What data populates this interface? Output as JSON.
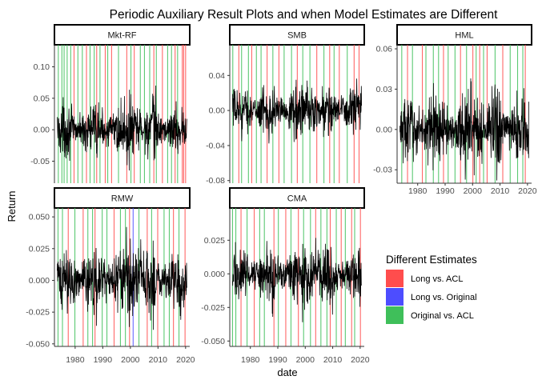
{
  "colors": {
    "long_vs_acl": "#ff4d4d",
    "long_vs_original": "#4d4dff",
    "original_vs_acl": "#3fbf5a",
    "series_line": "#000000",
    "background": "#ffffff"
  },
  "chart_data": {
    "type": "line",
    "title": "Periodic Auxiliary Result Plots and when Model Estimates are Different",
    "xlabel": "date",
    "ylabel": "Return",
    "grid": false,
    "legend_position": "bottom-right",
    "x_ticks": [
      "1980",
      "1990",
      "2000",
      "2010",
      "2020"
    ],
    "x_range": [
      1972.5,
      2021.5
    ],
    "legend": {
      "title": "Different Estimates",
      "items": [
        {
          "label": "Long vs. ACL",
          "color_key": "long_vs_acl"
        },
        {
          "label": "Long vs. Original",
          "color_key": "long_vs_original"
        },
        {
          "label": "Original vs. ACL",
          "color_key": "original_vs_acl"
        }
      ]
    },
    "panels": [
      {
        "name": "Mkt-RF",
        "ylim": [
          -0.085,
          0.135
        ],
        "y_ticks": [
          {
            "value": 0.1,
            "label": "0.10"
          },
          {
            "value": 0.05,
            "label": "0.05"
          },
          {
            "value": 0.0,
            "label": "0.00"
          },
          {
            "value": -0.05,
            "label": "-0.05"
          }
        ],
        "series_summary": {
          "min": -0.07,
          "max": 0.075,
          "start": 1973.5,
          "end": 2020.5,
          "frequency": "monthly"
        },
        "periods_long_vs_acl": [
          1979.6,
          1984.1,
          1987.8,
          1990.9,
          1993.2,
          1998.7,
          2001.4,
          2008.5,
          2011.6,
          2016.2,
          2018.8,
          2019.3,
          2020.0
        ],
        "periods_original_vs_acl": [
          1973.9,
          1975.2,
          1976.0,
          1977.1,
          1978.4,
          1981.0,
          1982.6,
          1985.4,
          1986.9,
          1989.0,
          1991.8,
          1995.7,
          2000.2,
          2003.6,
          2005.1,
          2007.0,
          2009.4,
          2013.5,
          2014.9,
          2017.1
        ]
      },
      {
        "name": "SMB",
        "ylim": [
          -0.083,
          0.075
        ],
        "y_ticks": [
          {
            "value": 0.04,
            "label": "0.04"
          },
          {
            "value": 0.0,
            "label": "0.00"
          },
          {
            "value": -0.04,
            "label": "-0.04"
          },
          {
            "value": -0.08,
            "label": "-0.08"
          }
        ],
        "series_summary": {
          "min": -0.05,
          "max": 0.04,
          "start": 1973.5,
          "end": 2020.5,
          "frequency": "monthly"
        },
        "periods_long_vs_acl": [
          1975.8,
          1980.5,
          1986.1,
          1990.4,
          1997.1,
          2004.2,
          2008.9,
          2012.4,
          2017.8,
          2019.6
        ],
        "periods_original_vs_acl": [
          1973.6,
          1976.8,
          1979.3,
          1982.2,
          1983.9,
          1988.2,
          1992.3,
          1995.0,
          1999.1,
          2001.7,
          2006.8,
          2010.5,
          2015.3
        ]
      },
      {
        "name": "HML",
        "ylim": [
          -0.04,
          0.063
        ],
        "y_ticks": [
          {
            "value": 0.06,
            "label": "0.06"
          },
          {
            "value": 0.03,
            "label": "0.03"
          },
          {
            "value": 0.0,
            "label": "0.00"
          },
          {
            "value": -0.03,
            "label": "-0.03"
          }
        ],
        "series_summary": {
          "min": -0.038,
          "max": 0.048,
          "start": 1973.5,
          "end": 2020.5,
          "frequency": "monthly"
        },
        "periods_long_vs_acl": [
          1976.3,
          1981.7,
          1989.4,
          1995.6,
          2000.1,
          2002.6,
          2005.3,
          2011.0,
          2019.2
        ],
        "periods_original_vs_acl": [
          1974.2,
          1978.1,
          1983.0,
          1985.7,
          1987.6,
          1991.1,
          1993.6,
          1997.8,
          2001.3,
          2004.0,
          2008.2,
          2013.7,
          2016.4,
          2018.3
        ]
      },
      {
        "name": "RMW",
        "ylim": [
          -0.052,
          0.057
        ],
        "y_ticks": [
          {
            "value": 0.05,
            "label": "0.050"
          },
          {
            "value": 0.025,
            "label": "0.025"
          },
          {
            "value": 0.0,
            "label": "0.000"
          },
          {
            "value": -0.025,
            "label": "-0.025"
          },
          {
            "value": -0.05,
            "label": "-0.050"
          }
        ],
        "series_summary": {
          "min": -0.042,
          "max": 0.046,
          "start": 1973.5,
          "end": 2020.5,
          "frequency": "monthly"
        },
        "periods_long_vs_acl": [
          1977.5,
          1982.9,
          1987.2,
          1994.1,
          1999.7,
          2006.1,
          2009.9,
          2015.6,
          2019.8
        ],
        "periods_long_vs_original": [
          2001.0
        ],
        "periods_original_vs_acl": [
          1973.8,
          1975.4,
          1979.9,
          1984.6,
          1986.3,
          1989.8,
          1991.5,
          1996.4,
          1998.2,
          2003.1,
          2007.7,
          2012.2,
          2014.1,
          2017.6
        ]
      },
      {
        "name": "CMA",
        "ylim": [
          -0.054,
          0.049
        ],
        "y_ticks": [
          {
            "value": 0.025,
            "label": "0.025"
          },
          {
            "value": 0.0,
            "label": "0.000"
          },
          {
            "value": -0.025,
            "label": "-0.025"
          },
          {
            "value": -0.05,
            "label": "-0.050"
          }
        ],
        "series_summary": {
          "min": -0.036,
          "max": 0.033,
          "start": 1973.5,
          "end": 2020.5,
          "frequency": "monthly"
        },
        "periods_long_vs_acl": [
          1976.6,
          1981.4,
          1988.6,
          1992.9,
          1997.5,
          2003.8,
          2009.1,
          2013.1,
          2016.9,
          2020.1
        ],
        "periods_original_vs_acl": [
          1973.5,
          1974.7,
          1978.8,
          1983.4,
          1985.1,
          1990.2,
          1994.8,
          1999.4,
          2001.9,
          2005.7,
          2007.9,
          2011.3,
          2014.6,
          2018.0
        ]
      }
    ]
  }
}
